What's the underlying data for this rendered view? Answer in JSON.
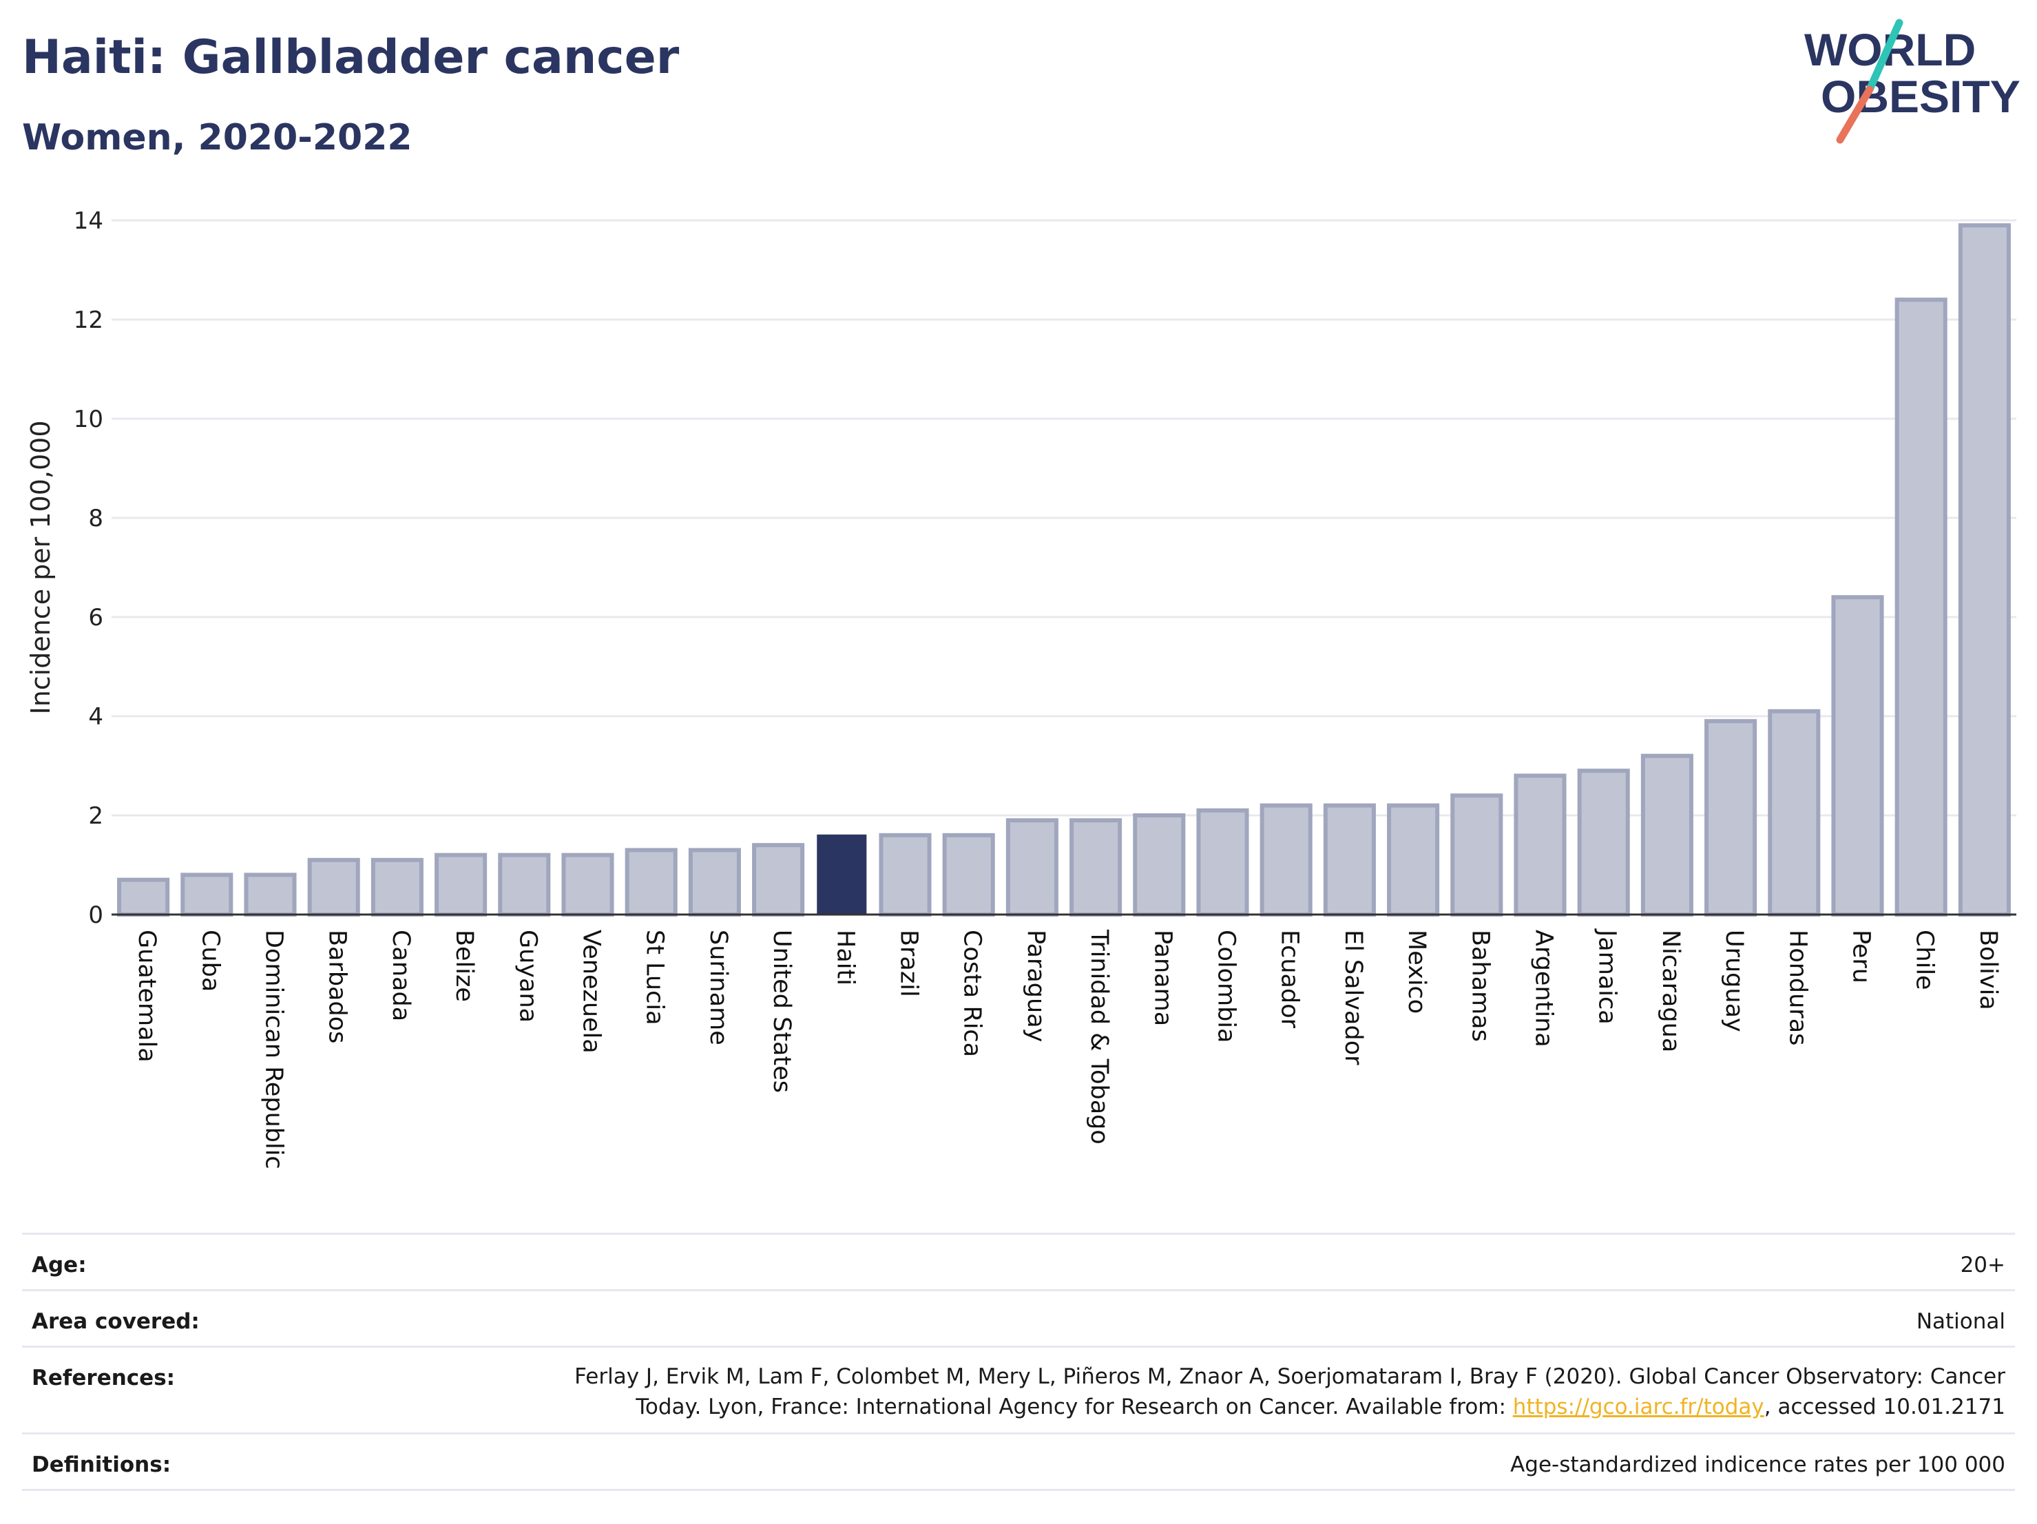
{
  "header": {
    "title": "Haiti: Gallbladder cancer",
    "subtitle": "Women, 2020-2022"
  },
  "logo": {
    "line1": "WORLD",
    "line2": "OBESITY",
    "text_color": "#2b3561",
    "slash_colors": [
      "#2ec4b6",
      "#e8735a"
    ]
  },
  "colors": {
    "highlight_bar": "#2b3561",
    "other_bar_fill": "#c1c5d3",
    "other_bar_stroke": "#a0a6bd",
    "gridline": "#e8e8ee",
    "axis": "#333333",
    "link": "#f0b323"
  },
  "chart_data": {
    "type": "bar",
    "ylabel": "Incidence per 100,000",
    "xlabel": "",
    "ylim": [
      0,
      14
    ],
    "yticks": [
      0,
      2,
      4,
      6,
      8,
      10,
      12,
      14
    ],
    "grid": true,
    "highlight": "Haiti",
    "categories": [
      "Guatemala",
      "Cuba",
      "Dominican Republic",
      "Barbados",
      "Canada",
      "Belize",
      "Guyana",
      "Venezuela",
      "St Lucia",
      "Suriname",
      "United States",
      "Haiti",
      "Brazil",
      "Costa Rica",
      "Paraguay",
      "Trinidad & Tobago",
      "Panama",
      "Colombia",
      "Ecuador",
      "El Salvador",
      "Mexico",
      "Bahamas",
      "Argentina",
      "Jamaica",
      "Nicaragua",
      "Uruguay",
      "Honduras",
      "Peru",
      "Chile",
      "Bolivia"
    ],
    "values": [
      0.7,
      0.8,
      0.8,
      1.1,
      1.1,
      1.2,
      1.2,
      1.2,
      1.3,
      1.3,
      1.4,
      1.6,
      1.6,
      1.6,
      1.9,
      1.9,
      2.0,
      2.1,
      2.2,
      2.2,
      2.2,
      2.4,
      2.8,
      2.9,
      3.2,
      3.9,
      4.1,
      6.4,
      12.4,
      13.9
    ]
  },
  "info": {
    "age_label": "Age:",
    "age_value": "20+",
    "area_label": "Area covered:",
    "area_value": "National",
    "references_label": "References:",
    "references_line1": "Ferlay J, Ervik M, Lam F, Colombet M, Mery L, Piñeros M, Znaor A, Soerjomataram I, Bray F (2020). Global Cancer Observatory: Cancer",
    "references_line2_pre": "Today. Lyon, France: International Agency for Research on Cancer. Available from: ",
    "references_link": "https://gco.iarc.fr/today",
    "references_line2_post": ", accessed 10.01.2171",
    "definitions_label": "Definitions:",
    "definitions_value": "Age-standardized indicence rates per 100 000"
  }
}
